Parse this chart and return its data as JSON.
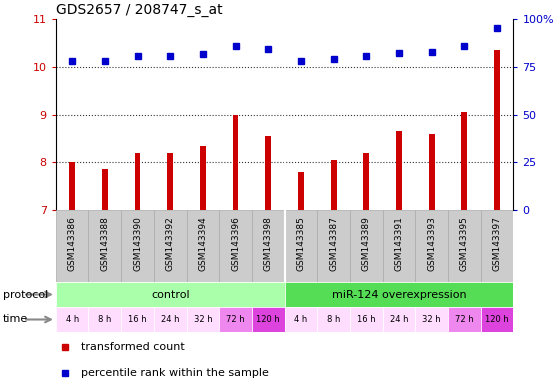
{
  "title": "GDS2657 / 208747_s_at",
  "samples": [
    "GSM143386",
    "GSM143388",
    "GSM143390",
    "GSM143392",
    "GSM143394",
    "GSM143396",
    "GSM143398",
    "GSM143385",
    "GSM143387",
    "GSM143389",
    "GSM143391",
    "GSM143393",
    "GSM143395",
    "GSM143397"
  ],
  "bar_values": [
    8.0,
    7.85,
    8.2,
    8.2,
    8.35,
    9.0,
    8.55,
    7.8,
    8.05,
    8.2,
    8.65,
    8.6,
    9.05,
    10.35
  ],
  "dot_values": [
    10.12,
    10.12,
    10.22,
    10.22,
    10.28,
    10.44,
    10.38,
    10.12,
    10.17,
    10.22,
    10.3,
    10.32,
    10.44,
    10.82
  ],
  "ylim_left": [
    7,
    11
  ],
  "ylim_right": [
    0,
    100
  ],
  "yticks_left": [
    7,
    8,
    9,
    10,
    11
  ],
  "yticks_right": [
    0,
    25,
    50,
    75,
    100
  ],
  "bar_color": "#cc0000",
  "dot_color": "#0000cc",
  "bar_bottom": 7,
  "protocol_control_label": "control",
  "protocol_mir_label": "miR-124 overexpression",
  "protocol_color_control": "#aaffaa",
  "protocol_color_mir": "#55dd55",
  "time_labels": [
    "4 h",
    "8 h",
    "16 h",
    "24 h",
    "32 h",
    "72 h",
    "120 h",
    "4 h",
    "8 h",
    "16 h",
    "24 h",
    "32 h",
    "72 h",
    "120 h"
  ],
  "time_colors": [
    "#ffddff",
    "#ffddff",
    "#ffddff",
    "#ffddff",
    "#ffddff",
    "#ee88ee",
    "#dd44dd",
    "#ffddff",
    "#ffddff",
    "#ffddff",
    "#ffddff",
    "#ffddff",
    "#ee88ee",
    "#dd44dd"
  ],
  "sample_bg_color": "#cccccc",
  "sample_border_color": "#aaaaaa",
  "dotted_line_color": "#333333",
  "left_ylabel_color": "#cc0000",
  "right_ylabel_color": "#0000cc",
  "legend_bar_label": "transformed count",
  "legend_dot_label": "percentile rank within the sample",
  "protocol_label": "protocol",
  "time_label": "time",
  "n_control": 7,
  "n_mir": 7
}
